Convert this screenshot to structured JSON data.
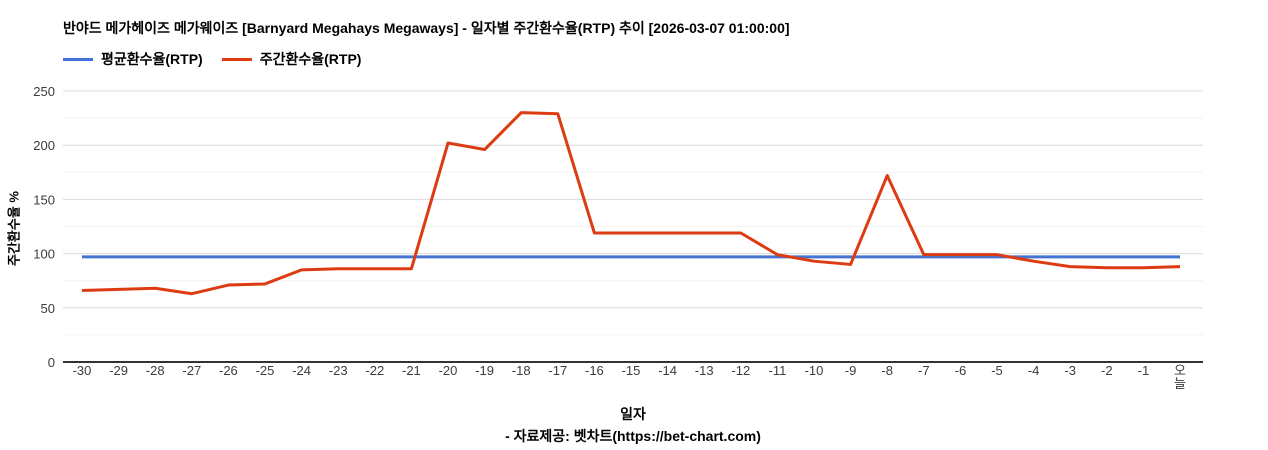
{
  "footer": "- 자료제공: 벳차트(https://bet-chart.com)",
  "colors": {
    "average_line": "#4374d4",
    "weekly_line": "#dd3b12",
    "grid_major": "#dcdcdc",
    "grid_minor": "#f2f2f2",
    "axis_baseline": "#333333",
    "tick_text": "#3c3c3c"
  },
  "chart_data": {
    "type": "line",
    "title": "반야드 메가헤이즈 메가웨이즈 [Barnyard Megahays Megaways] - 일자별 주간환수율(RTP) 추이 [2026-03-07 01:00:00]",
    "xlabel": "일자",
    "ylabel": "주간환수율 %",
    "ylim": [
      0,
      250
    ],
    "yticks": [
      0,
      50,
      100,
      150,
      200,
      250
    ],
    "y_minor_step": 25,
    "grid": true,
    "legend_position": "top-left",
    "categories": [
      "-30",
      "-29",
      "-28",
      "-27",
      "-26",
      "-25",
      "-24",
      "-23",
      "-22",
      "-21",
      "-20",
      "-19",
      "-18",
      "-17",
      "-16",
      "-15",
      "-14",
      "-13",
      "-12",
      "-11",
      "-10",
      "-9",
      "-8",
      "-7",
      "-6",
      "-5",
      "-4",
      "-3",
      "-2",
      "-1",
      "오늘"
    ],
    "series": [
      {
        "name": "평균환수율(RTP)",
        "color": "#4374d4",
        "values": [
          97,
          97,
          97,
          97,
          97,
          97,
          97,
          97,
          97,
          97,
          97,
          97,
          97,
          97,
          97,
          97,
          97,
          97,
          97,
          97,
          97,
          97,
          97,
          97,
          97,
          97,
          97,
          97,
          97,
          97,
          97
        ]
      },
      {
        "name": "주간환수율(RTP)",
        "color": "#dd3b12",
        "values": [
          66,
          67,
          68,
          63,
          71,
          72,
          85,
          86,
          86,
          86,
          202,
          196,
          230,
          229,
          119,
          119,
          119,
          119,
          119,
          99,
          93,
          90,
          172,
          99,
          99,
          99,
          93,
          88,
          87,
          87,
          88
        ]
      }
    ]
  }
}
